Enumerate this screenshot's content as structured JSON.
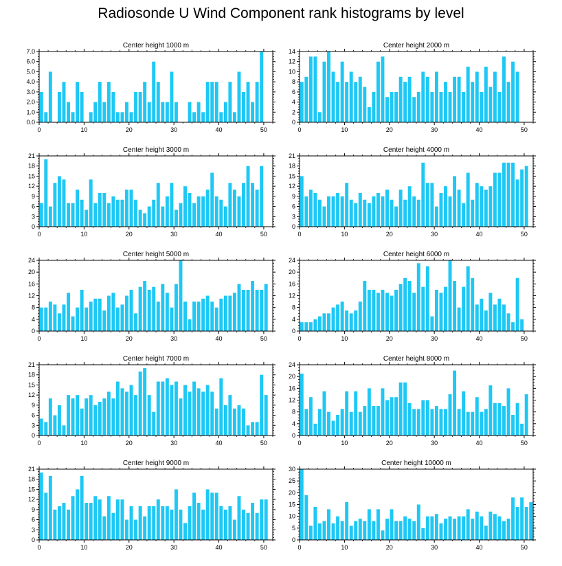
{
  "title": "Radiosonde U Wind Component rank histograms by level",
  "colors": {
    "bar": "#1EC8F5",
    "axis": "#000000",
    "background": "#ffffff"
  },
  "chart_data": [
    {
      "type": "bar",
      "title": "Center height 1000 m",
      "x": [
        0,
        1,
        2,
        3,
        4,
        5,
        6,
        7,
        8,
        9,
        10,
        11,
        12,
        13,
        14,
        15,
        16,
        17,
        18,
        19,
        20,
        21,
        22,
        23,
        24,
        25,
        26,
        27,
        28,
        29,
        30,
        31,
        32,
        33,
        34,
        35,
        36,
        37,
        38,
        39,
        40,
        41,
        42,
        43,
        44,
        45,
        46,
        47,
        48,
        49,
        50,
        51
      ],
      "values": [
        3,
        1,
        5,
        0,
        3,
        4,
        2,
        1,
        4,
        3,
        0,
        1,
        2,
        4,
        2,
        4,
        3,
        1,
        1,
        2,
        1,
        3,
        3,
        4,
        2,
        6,
        4,
        2,
        2,
        5,
        2,
        0,
        0,
        2,
        1,
        2,
        1,
        4,
        4,
        4,
        1,
        2,
        4,
        1,
        5,
        3,
        4,
        2,
        4,
        7,
        0,
        0
      ],
      "xlim": [
        0,
        52
      ],
      "ylim": [
        0,
        7
      ],
      "yticks": [
        0,
        1,
        2,
        3,
        4,
        5,
        6,
        7
      ],
      "yticklabels": [
        "0.0",
        "1.0",
        "2.0",
        "3.0",
        "4.0",
        "5.0",
        "6.0",
        "7.0"
      ],
      "xticks": [
        0,
        10,
        20,
        30,
        40,
        50
      ],
      "xticklabels": [
        "0",
        "10",
        "20",
        "30",
        "40",
        "50"
      ]
    },
    {
      "type": "bar",
      "title": "Center height 2000 m",
      "x": [
        0,
        1,
        2,
        3,
        4,
        5,
        6,
        7,
        8,
        9,
        10,
        11,
        12,
        13,
        14,
        15,
        16,
        17,
        18,
        19,
        20,
        21,
        22,
        23,
        24,
        25,
        26,
        27,
        28,
        29,
        30,
        31,
        32,
        33,
        34,
        35,
        36,
        37,
        38,
        39,
        40,
        41,
        42,
        43,
        44,
        45,
        46,
        47,
        48,
        49,
        50,
        51
      ],
      "values": [
        8,
        9,
        13,
        13,
        2,
        12,
        14,
        10,
        8,
        12,
        8,
        10,
        8,
        9,
        7,
        3,
        6,
        12,
        13,
        5,
        6,
        6,
        9,
        8,
        9,
        5,
        6,
        10,
        9,
        6,
        10,
        6,
        8,
        6,
        9,
        9,
        6,
        11,
        8,
        10,
        6,
        11,
        7,
        10,
        6,
        13,
        8,
        12,
        10,
        0,
        0,
        0
      ],
      "xlim": [
        0,
        52
      ],
      "ylim": [
        0,
        14
      ],
      "yticks": [
        0,
        2,
        4,
        6,
        8,
        10,
        12,
        14
      ],
      "yticklabels": [
        "0",
        "2",
        "4",
        "6",
        "8",
        "10",
        "12",
        "14"
      ],
      "xticks": [
        0,
        10,
        20,
        30,
        40,
        50
      ],
      "xticklabels": [
        "0",
        "10",
        "20",
        "30",
        "40",
        "50"
      ]
    },
    {
      "type": "bar",
      "title": "Center height 3000 m",
      "x": [
        0,
        1,
        2,
        3,
        4,
        5,
        6,
        7,
        8,
        9,
        10,
        11,
        12,
        13,
        14,
        15,
        16,
        17,
        18,
        19,
        20,
        21,
        22,
        23,
        24,
        25,
        26,
        27,
        28,
        29,
        30,
        31,
        32,
        33,
        34,
        35,
        36,
        37,
        38,
        39,
        40,
        41,
        42,
        43,
        44,
        45,
        46,
        47,
        48,
        49,
        50,
        51
      ],
      "values": [
        7,
        20,
        6,
        13,
        15,
        14,
        7,
        7,
        11,
        8,
        5,
        14,
        7,
        10,
        10,
        7,
        9,
        8,
        8,
        11,
        11,
        8,
        5,
        4,
        6,
        8,
        13,
        6,
        9,
        13,
        5,
        7,
        12,
        10,
        7,
        9,
        9,
        11,
        16,
        9,
        8,
        6,
        13,
        11,
        9,
        13,
        18,
        13,
        11,
        18,
        0,
        0
      ],
      "xlim": [
        0,
        52
      ],
      "ylim": [
        0,
        21
      ],
      "yticks": [
        0,
        3,
        6,
        9,
        12,
        15,
        18,
        21
      ],
      "yticklabels": [
        "0",
        "3",
        "6",
        "9",
        "12",
        "15",
        "18",
        "21"
      ],
      "xticks": [
        0,
        10,
        20,
        30,
        40,
        50
      ],
      "xticklabels": [
        "0",
        "10",
        "20",
        "30",
        "40",
        "50"
      ]
    },
    {
      "type": "bar",
      "title": "Center height 4000 m",
      "x": [
        0,
        1,
        2,
        3,
        4,
        5,
        6,
        7,
        8,
        9,
        10,
        11,
        12,
        13,
        14,
        15,
        16,
        17,
        18,
        19,
        20,
        21,
        22,
        23,
        24,
        25,
        26,
        27,
        28,
        29,
        30,
        31,
        32,
        33,
        34,
        35,
        36,
        37,
        38,
        39,
        40,
        41,
        42,
        43,
        44,
        45,
        46,
        47,
        48,
        49,
        50,
        51
      ],
      "values": [
        15,
        9,
        11,
        10,
        8,
        6,
        9,
        9,
        10,
        9,
        13,
        8,
        7,
        10,
        8,
        7,
        9,
        10,
        9,
        11,
        8,
        6,
        11,
        8,
        12,
        9,
        8,
        19,
        13,
        13,
        6,
        10,
        12,
        9,
        15,
        11,
        7,
        16,
        8,
        13,
        12,
        11,
        12,
        16,
        16,
        19,
        19,
        19,
        14,
        17,
        18,
        0
      ],
      "xlim": [
        0,
        52
      ],
      "ylim": [
        0,
        21
      ],
      "yticks": [
        0,
        3,
        6,
        9,
        12,
        15,
        18,
        21
      ],
      "yticklabels": [
        "0",
        "3",
        "6",
        "9",
        "12",
        "15",
        "18",
        "21"
      ],
      "xticks": [
        0,
        10,
        20,
        30,
        40,
        50
      ],
      "xticklabels": [
        "0",
        "10",
        "20",
        "30",
        "40",
        "50"
      ]
    },
    {
      "type": "bar",
      "title": "Center height 5000 m",
      "x": [
        0,
        1,
        2,
        3,
        4,
        5,
        6,
        7,
        8,
        9,
        10,
        11,
        12,
        13,
        14,
        15,
        16,
        17,
        18,
        19,
        20,
        21,
        22,
        23,
        24,
        25,
        26,
        27,
        28,
        29,
        30,
        31,
        32,
        33,
        34,
        35,
        36,
        37,
        38,
        39,
        40,
        41,
        42,
        43,
        44,
        45,
        46,
        47,
        48,
        49,
        50,
        51
      ],
      "values": [
        8,
        8,
        10,
        9,
        6,
        9,
        13,
        5,
        8,
        14,
        8,
        10,
        11,
        11,
        7,
        12,
        13,
        8,
        9,
        12,
        14,
        6,
        15,
        17,
        14,
        15,
        10,
        16,
        13,
        8,
        16,
        24,
        10,
        4,
        10,
        10,
        11,
        12,
        10,
        8,
        11,
        12,
        12,
        13,
        16,
        14,
        14,
        17,
        14,
        14,
        16,
        0
      ],
      "xlim": [
        0,
        52
      ],
      "ylim": [
        0,
        24
      ],
      "yticks": [
        0,
        4,
        8,
        12,
        16,
        20,
        24
      ],
      "yticklabels": [
        "0",
        "4",
        "8",
        "12",
        "16",
        "20",
        "24"
      ],
      "xticks": [
        0,
        10,
        20,
        30,
        40,
        50
      ],
      "xticklabels": [
        "0",
        "10",
        "20",
        "30",
        "40",
        "50"
      ]
    },
    {
      "type": "bar",
      "title": "Center height 6000 m",
      "x": [
        0,
        1,
        2,
        3,
        4,
        5,
        6,
        7,
        8,
        9,
        10,
        11,
        12,
        13,
        14,
        15,
        16,
        17,
        18,
        19,
        20,
        21,
        22,
        23,
        24,
        25,
        26,
        27,
        28,
        29,
        30,
        31,
        32,
        33,
        34,
        35,
        36,
        37,
        38,
        39,
        40,
        41,
        42,
        43,
        44,
        45,
        46,
        47,
        48,
        49,
        50,
        51
      ],
      "values": [
        3,
        3,
        3,
        4,
        5,
        6,
        6,
        8,
        9,
        10,
        7,
        6,
        7,
        10,
        17,
        14,
        14,
        13,
        14,
        13,
        12,
        14,
        16,
        18,
        17,
        13,
        23,
        15,
        22,
        5,
        14,
        13,
        15,
        24,
        17,
        8,
        15,
        22,
        18,
        9,
        11,
        7,
        13,
        9,
        11,
        9,
        6,
        3,
        18,
        4,
        0,
        0
      ],
      "xlim": [
        0,
        52
      ],
      "ylim": [
        0,
        24
      ],
      "yticks": [
        0,
        4,
        8,
        12,
        16,
        20,
        24
      ],
      "yticklabels": [
        "0",
        "4",
        "8",
        "12",
        "16",
        "20",
        "24"
      ],
      "xticks": [
        0,
        10,
        20,
        30,
        40,
        50
      ],
      "xticklabels": [
        "0",
        "10",
        "20",
        "30",
        "40",
        "50"
      ]
    },
    {
      "type": "bar",
      "title": "Center height 7000 m",
      "x": [
        0,
        1,
        2,
        3,
        4,
        5,
        6,
        7,
        8,
        9,
        10,
        11,
        12,
        13,
        14,
        15,
        16,
        17,
        18,
        19,
        20,
        21,
        22,
        23,
        24,
        25,
        26,
        27,
        28,
        29,
        30,
        31,
        32,
        33,
        34,
        35,
        36,
        37,
        38,
        39,
        40,
        41,
        42,
        43,
        44,
        45,
        46,
        47,
        48,
        49,
        50,
        51
      ],
      "values": [
        5,
        4,
        11,
        6,
        9,
        3,
        12,
        11,
        12,
        8,
        11,
        12,
        9,
        10,
        11,
        13,
        11,
        16,
        14,
        13,
        15,
        12,
        19,
        20,
        12,
        7,
        16,
        16,
        17,
        15,
        16,
        11,
        15,
        13,
        16,
        14,
        13,
        15,
        13,
        8,
        17,
        9,
        12,
        8,
        9,
        8,
        3,
        4,
        4,
        18,
        12,
        0
      ],
      "xlim": [
        0,
        52
      ],
      "ylim": [
        0,
        21
      ],
      "yticks": [
        0,
        3,
        6,
        9,
        12,
        15,
        18,
        21
      ],
      "yticklabels": [
        "0",
        "3",
        "6",
        "9",
        "12",
        "15",
        "18",
        "21"
      ],
      "xticks": [
        0,
        10,
        20,
        30,
        40,
        50
      ],
      "xticklabels": [
        "0",
        "10",
        "20",
        "30",
        "40",
        "50"
      ]
    },
    {
      "type": "bar",
      "title": "Center height 8000 m",
      "x": [
        0,
        1,
        2,
        3,
        4,
        5,
        6,
        7,
        8,
        9,
        10,
        11,
        12,
        13,
        14,
        15,
        16,
        17,
        18,
        19,
        20,
        21,
        22,
        23,
        24,
        25,
        26,
        27,
        28,
        29,
        30,
        31,
        32,
        33,
        34,
        35,
        36,
        37,
        38,
        39,
        40,
        41,
        42,
        43,
        44,
        45,
        46,
        47,
        48,
        49,
        50,
        51
      ],
      "values": [
        21,
        9,
        13,
        4,
        9,
        15,
        8,
        5,
        7,
        9,
        15,
        8,
        15,
        8,
        10,
        16,
        10,
        10,
        16,
        12,
        13,
        13,
        18,
        18,
        11,
        9,
        9,
        12,
        12,
        9,
        10,
        9,
        9,
        14,
        22,
        9,
        15,
        8,
        8,
        13,
        8,
        9,
        17,
        11,
        11,
        10,
        16,
        7,
        11,
        4,
        14,
        0
      ],
      "xlim": [
        0,
        52
      ],
      "ylim": [
        0,
        24
      ],
      "yticks": [
        0,
        4,
        8,
        12,
        16,
        20,
        24
      ],
      "yticklabels": [
        "0",
        "4",
        "8",
        "12",
        "16",
        "20",
        "24"
      ],
      "xticks": [
        0,
        10,
        20,
        30,
        40,
        50
      ],
      "xticklabels": [
        "0",
        "10",
        "20",
        "30",
        "40",
        "50"
      ]
    },
    {
      "type": "bar",
      "title": "Center height 9000 m",
      "x": [
        0,
        1,
        2,
        3,
        4,
        5,
        6,
        7,
        8,
        9,
        10,
        11,
        12,
        13,
        14,
        15,
        16,
        17,
        18,
        19,
        20,
        21,
        22,
        23,
        24,
        25,
        26,
        27,
        28,
        29,
        30,
        31,
        32,
        33,
        34,
        35,
        36,
        37,
        38,
        39,
        40,
        41,
        42,
        43,
        44,
        45,
        46,
        47,
        48,
        49,
        50,
        51
      ],
      "values": [
        20,
        14,
        19,
        9,
        10,
        11,
        9,
        13,
        15,
        19,
        11,
        11,
        13,
        12,
        7,
        13,
        8,
        12,
        12,
        6,
        10,
        6,
        10,
        7,
        10,
        10,
        12,
        10,
        10,
        9,
        15,
        9,
        5,
        10,
        14,
        11,
        9,
        15,
        14,
        14,
        10,
        9,
        10,
        6,
        13,
        9,
        8,
        11,
        8,
        12,
        12,
        0
      ],
      "xlim": [
        0,
        52
      ],
      "ylim": [
        0,
        21
      ],
      "yticks": [
        0,
        3,
        6,
        9,
        12,
        15,
        18,
        21
      ],
      "yticklabels": [
        "0",
        "3",
        "6",
        "9",
        "12",
        "15",
        "18",
        "21"
      ],
      "xticks": [
        0,
        10,
        20,
        30,
        40,
        50
      ],
      "xticklabels": [
        "0",
        "10",
        "20",
        "30",
        "40",
        "50"
      ]
    },
    {
      "type": "bar",
      "title": "Center height 10000 m",
      "x": [
        0,
        1,
        2,
        3,
        4,
        5,
        6,
        7,
        8,
        9,
        10,
        11,
        12,
        13,
        14,
        15,
        16,
        17,
        18,
        19,
        20,
        21,
        22,
        23,
        24,
        25,
        26,
        27,
        28,
        29,
        30,
        31,
        32,
        33,
        34,
        35,
        36,
        37,
        38,
        39,
        40,
        41,
        42,
        43,
        44,
        45,
        46,
        47,
        48,
        49,
        50,
        51
      ],
      "values": [
        30,
        19,
        6,
        14,
        7,
        8,
        13,
        7,
        10,
        8,
        16,
        6,
        8,
        9,
        8,
        13,
        8,
        13,
        4,
        9,
        13,
        8,
        8,
        10,
        9,
        8,
        15,
        5,
        10,
        10,
        11,
        7,
        9,
        10,
        9,
        10,
        10,
        13,
        9,
        12,
        10,
        6,
        12,
        11,
        10,
        8,
        9,
        18,
        14,
        18,
        14,
        16
      ],
      "xlim": [
        0,
        52
      ],
      "ylim": [
        0,
        30
      ],
      "yticks": [
        0,
        5,
        10,
        15,
        20,
        25,
        30
      ],
      "yticklabels": [
        "0",
        "5",
        "10",
        "15",
        "20",
        "25",
        "30"
      ],
      "xticks": [
        0,
        10,
        20,
        30,
        40,
        50
      ],
      "xticklabels": [
        "0",
        "10",
        "20",
        "30",
        "40",
        "50"
      ]
    }
  ]
}
